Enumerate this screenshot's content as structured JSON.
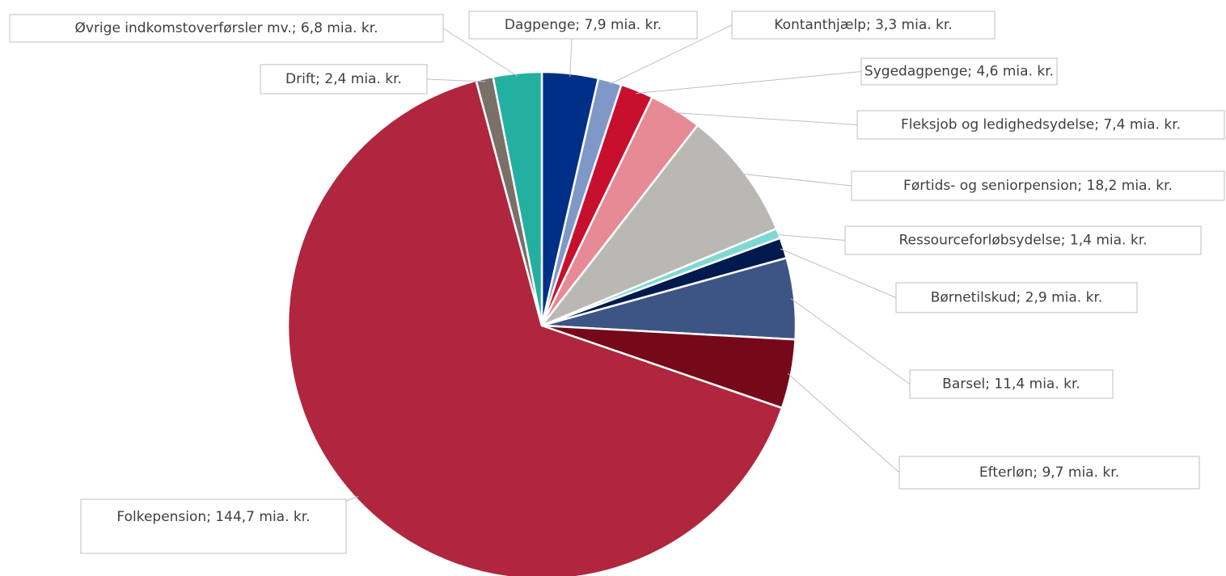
{
  "chart_data": {
    "type": "pie",
    "values": [
      7.9,
      3.3,
      4.6,
      7.4,
      18.2,
      1.4,
      2.9,
      11.4,
      9.7,
      144.7,
      2.4,
      6.8
    ],
    "value_labels": [
      "Dagpenge; 7,9 mia. kr.",
      "Kontanthjælp; 3,3 mia. kr.",
      "Sygedagpenge; 4,6 mia. kr.",
      "Fleksjob og ledighedsydelse; 7,4 mia. kr.",
      "Førtids- og seniorpension; 18,2 mia. kr.",
      "Ressourceforløbsydelse; 1,4 mia. kr.",
      "Børnetilskud; 2,9 mia. kr.",
      "Barsel; 11,4 mia. kr.",
      "Efterløn; 9,7 mia. kr.",
      "Folkepension; 144,7 mia. kr.",
      "Drift; 2,4 mia. kr.",
      "Øvrige indkomstoverførsler mv.; 6,8 mia. kr."
    ],
    "colors": [
      "#002f87",
      "#8098c8",
      "#c8102e",
      "#e68a96",
      "#bab8b2",
      "#7fd9d3",
      "#001a4d",
      "#3d5584",
      "#75091a",
      "#b0263e",
      "#7a7068",
      "#24b0a0"
    ]
  }
}
